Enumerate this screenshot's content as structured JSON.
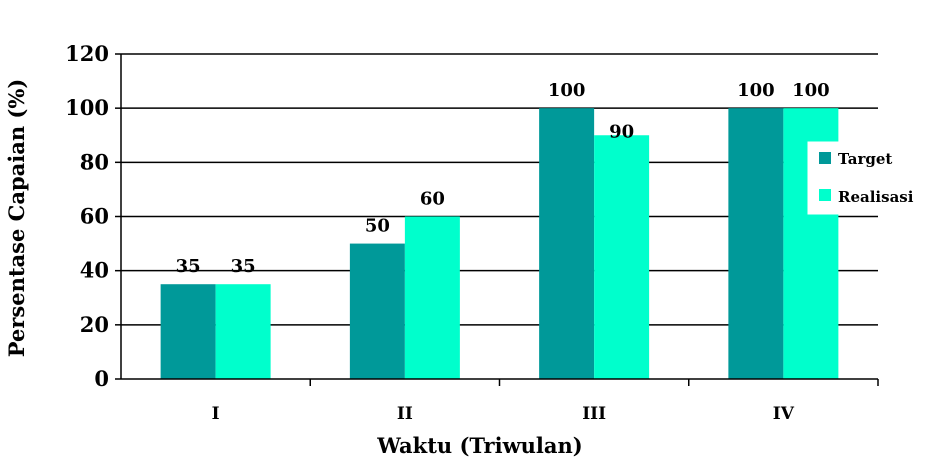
{
  "chart_data": {
    "type": "bar",
    "categories": [
      "I",
      "II",
      "III",
      "IV"
    ],
    "series": [
      {
        "name": "Target",
        "values": [
          35,
          50,
          100,
          100
        ],
        "color": "#009999"
      },
      {
        "name": "Realisasi",
        "values": [
          35,
          60,
          90,
          100
        ],
        "color": "#00FFCC"
      }
    ],
    "data_labels": [
      [
        "35",
        "50",
        "100",
        "100"
      ],
      [
        "35",
        "60",
        "90",
        "100"
      ]
    ],
    "xlabel": "Waktu (Triwulan)",
    "ylabel": "Persentase Capaian (%)",
    "ylim": [
      0,
      120
    ],
    "yticks": [
      0,
      20,
      40,
      60,
      80,
      100,
      120
    ],
    "grid": true,
    "legend_position": "right"
  }
}
